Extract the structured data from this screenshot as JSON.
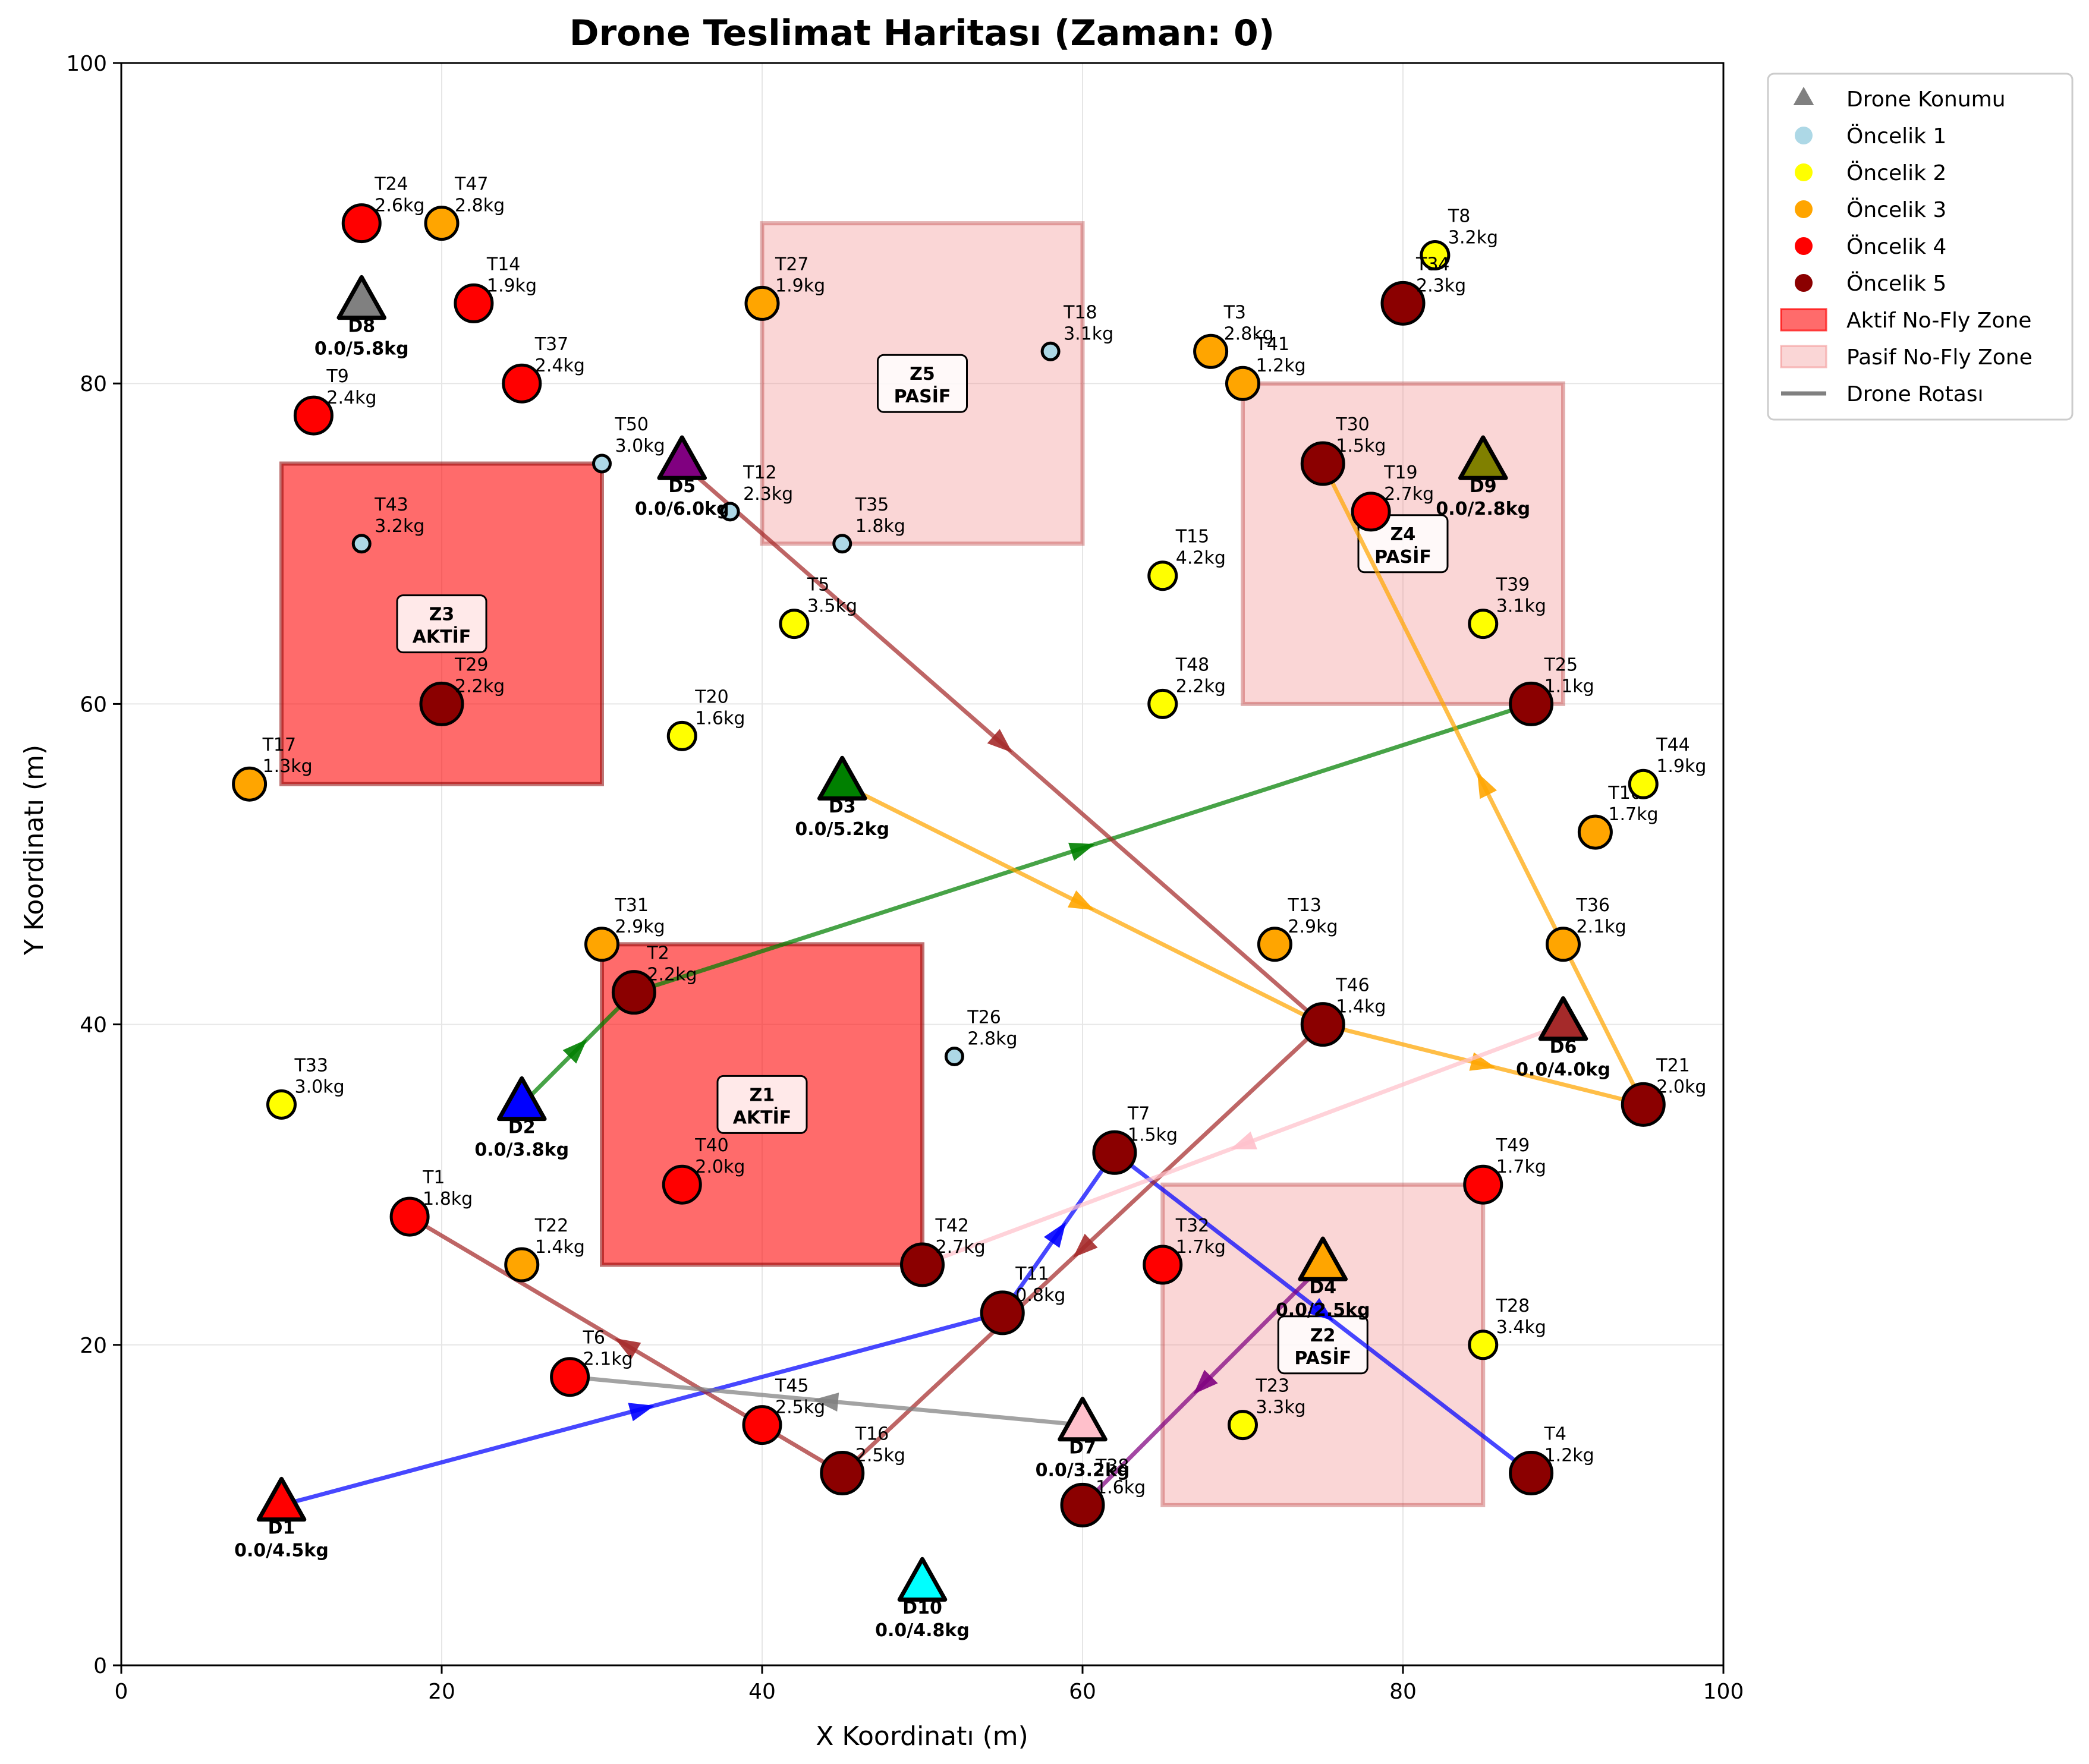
{
  "chart_data": {
    "type": "scatter",
    "title": "Drone Teslimat Haritası (Zaman: 0)",
    "xlabel": "X Koordinatı (m)",
    "ylabel": "Y Koordinatı (m)",
    "xlim": [
      0,
      100
    ],
    "ylim": [
      0,
      100
    ],
    "xticks": [
      0,
      20,
      40,
      60,
      80,
      100
    ],
    "yticks": [
      0,
      20,
      40,
      60,
      80,
      100
    ],
    "grid": true,
    "legend_position": "outside-top-right",
    "legend": [
      {
        "label": "Drone Konumu",
        "marker": "triangle",
        "color": "#808080"
      },
      {
        "label": "Öncelik 1",
        "marker": "circle",
        "color": "#add8e6"
      },
      {
        "label": "Öncelik 2",
        "marker": "circle",
        "color": "#ffff00"
      },
      {
        "label": "Öncelik 3",
        "marker": "circle",
        "color": "#ffa500"
      },
      {
        "label": "Öncelik 4",
        "marker": "circle",
        "color": "#ff0000"
      },
      {
        "label": "Öncelik 5",
        "marker": "circle",
        "color": "#8b0000"
      },
      {
        "label": "Aktif No-Fly Zone",
        "marker": "rect",
        "color": "#ff0000"
      },
      {
        "label": "Pasif No-Fly Zone",
        "marker": "rect",
        "color": "#f08080"
      },
      {
        "label": "Drone Rotası",
        "marker": "line",
        "color": "#808080"
      }
    ],
    "priority_colors": {
      "1": "#add8e6",
      "2": "#ffff00",
      "3": "#ffa500",
      "4": "#ff0000",
      "5": "#8b0000"
    },
    "zones": [
      {
        "id": "Z1",
        "status": "AKTİF",
        "active": true,
        "x": [
          30,
          50
        ],
        "y": [
          25,
          45
        ]
      },
      {
        "id": "Z2",
        "status": "PASİF",
        "active": false,
        "x": [
          65,
          85
        ],
        "y": [
          10,
          30
        ]
      },
      {
        "id": "Z3",
        "status": "AKTİF",
        "active": true,
        "x": [
          10,
          30
        ],
        "y": [
          55,
          75
        ]
      },
      {
        "id": "Z4",
        "status": "PASİF",
        "active": false,
        "x": [
          70,
          90
        ],
        "y": [
          60,
          80
        ]
      },
      {
        "id": "Z5",
        "status": "PASİF",
        "active": false,
        "x": [
          40,
          60
        ],
        "y": [
          70,
          90
        ]
      }
    ],
    "deliveries": [
      {
        "id": "T1",
        "x": 18,
        "y": 28,
        "weight": "1.8kg",
        "priority": 4
      },
      {
        "id": "T2",
        "x": 32,
        "y": 42,
        "weight": "2.2kg",
        "priority": 5
      },
      {
        "id": "T3",
        "x": 68,
        "y": 82,
        "weight": "2.8kg",
        "priority": 3
      },
      {
        "id": "T4",
        "x": 88,
        "y": 12,
        "weight": "1.2kg",
        "priority": 5
      },
      {
        "id": "T5",
        "x": 42,
        "y": 65,
        "weight": "3.5kg",
        "priority": 2
      },
      {
        "id": "T6",
        "x": 28,
        "y": 18,
        "weight": "2.1kg",
        "priority": 4
      },
      {
        "id": "T7",
        "x": 62,
        "y": 32,
        "weight": "1.5kg",
        "priority": 5
      },
      {
        "id": "T8",
        "x": 82,
        "y": 88,
        "weight": "3.2kg",
        "priority": 2
      },
      {
        "id": "T9",
        "x": 12,
        "y": 78,
        "weight": "2.4kg",
        "priority": 4
      },
      {
        "id": "T10",
        "x": 92,
        "y": 52,
        "weight": "1.7kg",
        "priority": 3
      },
      {
        "id": "T11",
        "x": 55,
        "y": 22,
        "weight": "0.8kg",
        "priority": 5
      },
      {
        "id": "T12",
        "x": 38,
        "y": 72,
        "weight": "2.3kg",
        "priority": 1
      },
      {
        "id": "T13",
        "x": 72,
        "y": 45,
        "weight": "2.9kg",
        "priority": 3
      },
      {
        "id": "T14",
        "x": 22,
        "y": 85,
        "weight": "1.9kg",
        "priority": 4
      },
      {
        "id": "T15",
        "x": 65,
        "y": 68,
        "weight": "4.2kg",
        "priority": 2
      },
      {
        "id": "T16",
        "x": 45,
        "y": 12,
        "weight": "2.5kg",
        "priority": 5
      },
      {
        "id": "T17",
        "x": 8,
        "y": 55,
        "weight": "1.3kg",
        "priority": 3
      },
      {
        "id": "T18",
        "x": 58,
        "y": 82,
        "weight": "3.1kg",
        "priority": 1
      },
      {
        "id": "T19",
        "x": 78,
        "y": 72,
        "weight": "2.7kg",
        "priority": 4
      },
      {
        "id": "T20",
        "x": 35,
        "y": 58,
        "weight": "1.6kg",
        "priority": 2
      },
      {
        "id": "T21",
        "x": 95,
        "y": 35,
        "weight": "2.0kg",
        "priority": 5
      },
      {
        "id": "T22",
        "x": 25,
        "y": 25,
        "weight": "1.4kg",
        "priority": 3
      },
      {
        "id": "T23",
        "x": 70,
        "y": 15,
        "weight": "3.3kg",
        "priority": 2
      },
      {
        "id": "T24",
        "x": 15,
        "y": 90,
        "weight": "2.6kg",
        "priority": 4
      },
      {
        "id": "T25",
        "x": 88,
        "y": 60,
        "weight": "1.1kg",
        "priority": 5
      },
      {
        "id": "T26",
        "x": 52,
        "y": 38,
        "weight": "2.8kg",
        "priority": 1
      },
      {
        "id": "T27",
        "x": 40,
        "y": 85,
        "weight": "1.9kg",
        "priority": 3
      },
      {
        "id": "T28",
        "x": 85,
        "y": 20,
        "weight": "3.4kg",
        "priority": 2
      },
      {
        "id": "T29",
        "x": 20,
        "y": 60,
        "weight": "2.2kg",
        "priority": 5
      },
      {
        "id": "T30",
        "x": 75,
        "y": 75,
        "weight": "1.5kg",
        "priority": 5
      },
      {
        "id": "T31",
        "x": 30,
        "y": 45,
        "weight": "2.9kg",
        "priority": 3
      },
      {
        "id": "T32",
        "x": 65,
        "y": 25,
        "weight": "1.7kg",
        "priority": 4
      },
      {
        "id": "T33",
        "x": 10,
        "y": 35,
        "weight": "3.0kg",
        "priority": 2
      },
      {
        "id": "T34",
        "x": 80,
        "y": 85,
        "weight": "2.3kg",
        "priority": 5
      },
      {
        "id": "T35",
        "x": 45,
        "y": 70,
        "weight": "1.8kg",
        "priority": 1
      },
      {
        "id": "T36",
        "x": 90,
        "y": 45,
        "weight": "2.1kg",
        "priority": 3
      },
      {
        "id": "T37",
        "x": 25,
        "y": 80,
        "weight": "2.4kg",
        "priority": 4
      },
      {
        "id": "T39",
        "x": 85,
        "y": 65,
        "weight": "3.1kg",
        "priority": 2
      },
      {
        "id": "T40",
        "x": 35,
        "y": 30,
        "weight": "2.0kg",
        "priority": 4
      },
      {
        "id": "T41",
        "x": 70,
        "y": 80,
        "weight": "1.2kg",
        "priority": 3
      },
      {
        "id": "T42",
        "x": 50,
        "y": 25,
        "weight": "2.7kg",
        "priority": 5
      },
      {
        "id": "T43",
        "x": 15,
        "y": 70,
        "weight": "3.2kg",
        "priority": 1
      },
      {
        "id": "T44",
        "x": 95,
        "y": 55,
        "weight": "1.9kg",
        "priority": 2
      },
      {
        "id": "T45",
        "x": 40,
        "y": 15,
        "weight": "2.5kg",
        "priority": 4
      },
      {
        "id": "T46",
        "x": 75,
        "y": 40,
        "weight": "1.4kg",
        "priority": 5
      },
      {
        "id": "T47",
        "x": 20,
        "y": 90,
        "weight": "2.8kg",
        "priority": 3
      },
      {
        "id": "T48",
        "x": 65,
        "y": 60,
        "weight": "2.2kg",
        "priority": 2
      },
      {
        "id": "T49",
        "x": 85,
        "y": 30,
        "weight": "1.7kg",
        "priority": 4
      },
      {
        "id": "T50",
        "x": 30,
        "y": 75,
        "weight": "3.0kg",
        "priority": 1
      },
      {
        "id": "T38",
        "x": 60,
        "y": 10,
        "weight": "1.6kg",
        "priority": 5,
        "label": "T38"
      }
    ],
    "drones": [
      {
        "id": "D1",
        "x": 10,
        "y": 10,
        "load": "0.0/4.5kg",
        "color": "#ff0000"
      },
      {
        "id": "D2",
        "x": 25,
        "y": 35,
        "load": "0.0/3.8kg",
        "color": "#0000ff"
      },
      {
        "id": "D3",
        "x": 45,
        "y": 55,
        "load": "0.0/5.2kg",
        "color": "#008000"
      },
      {
        "id": "D4",
        "x": 75,
        "y": 25,
        "load": "0.0/2.5kg",
        "color": "#ffa500"
      },
      {
        "id": "D5",
        "x": 35,
        "y": 75,
        "load": "0.0/6.0kg",
        "color": "#800080"
      },
      {
        "id": "D6",
        "x": 90,
        "y": 40,
        "load": "0.0/4.0kg",
        "color": "#a52a2a"
      },
      {
        "id": "D7",
        "x": 60,
        "y": 15,
        "load": "0.0/3.2kg",
        "color": "#ffc0cb"
      },
      {
        "id": "D8",
        "x": 15,
        "y": 85,
        "load": "0.0/5.8kg",
        "color": "#808080"
      },
      {
        "id": "D9",
        "x": 85,
        "y": 75,
        "load": "0.0/2.8kg",
        "color": "#808000"
      },
      {
        "id": "D10",
        "x": 50,
        "y": 5,
        "load": "0.0/4.8kg",
        "color": "#00ffff"
      }
    ],
    "routes": [
      {
        "drone": "D1",
        "color": "#0000ff",
        "points": [
          [
            10,
            10
          ],
          [
            55,
            22
          ],
          [
            62,
            32
          ],
          [
            88,
            12
          ]
        ]
      },
      {
        "drone": "D2",
        "color": "#008000",
        "points": [
          [
            25,
            35
          ],
          [
            32,
            42
          ],
          [
            88,
            60
          ]
        ]
      },
      {
        "drone": "D3",
        "color": "#ffa500",
        "points": [
          [
            45,
            55
          ],
          [
            75,
            40
          ],
          [
            95,
            35
          ],
          [
            75,
            75
          ]
        ]
      },
      {
        "drone": "D4",
        "color": "#800080",
        "points": [
          [
            75,
            25
          ],
          [
            60,
            10
          ]
        ]
      },
      {
        "drone": "D5",
        "color": "#a52a2a",
        "points": [
          [
            35,
            75
          ],
          [
            75,
            40
          ],
          [
            45,
            12
          ],
          [
            18,
            28
          ]
        ]
      },
      {
        "drone": "D6",
        "color": "#ffc0cb",
        "points": [
          [
            90,
            40
          ],
          [
            50,
            25
          ]
        ]
      },
      {
        "drone": "D7",
        "color": "#808080",
        "points": [
          [
            60,
            15
          ],
          [
            28,
            18
          ]
        ]
      }
    ]
  }
}
